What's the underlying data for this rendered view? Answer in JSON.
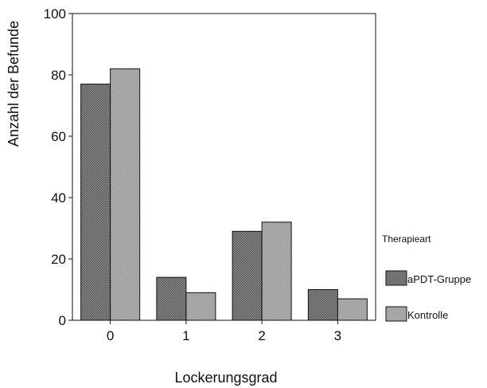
{
  "chart_data": {
    "type": "bar",
    "xlabel": "Lockerungsgrad",
    "ylabel": "Anzahl der Befunde",
    "categories": [
      "0",
      "1",
      "2",
      "3"
    ],
    "ylim": [
      0,
      100
    ],
    "yticks": [
      "0",
      "20",
      "40",
      "60",
      "80",
      "100"
    ],
    "grid": false,
    "legend": {
      "title": "Therapieart",
      "placement": "right"
    },
    "series": [
      {
        "name": "aPDT-Gruppe",
        "values": [
          77,
          14,
          29,
          10
        ],
        "color": "#7a7a7a",
        "pattern": "dark-hatch"
      },
      {
        "name": "Kontrolle",
        "values": [
          82,
          9,
          32,
          7
        ],
        "color": "#a6a6a6",
        "pattern": "light-hatch"
      }
    ]
  }
}
